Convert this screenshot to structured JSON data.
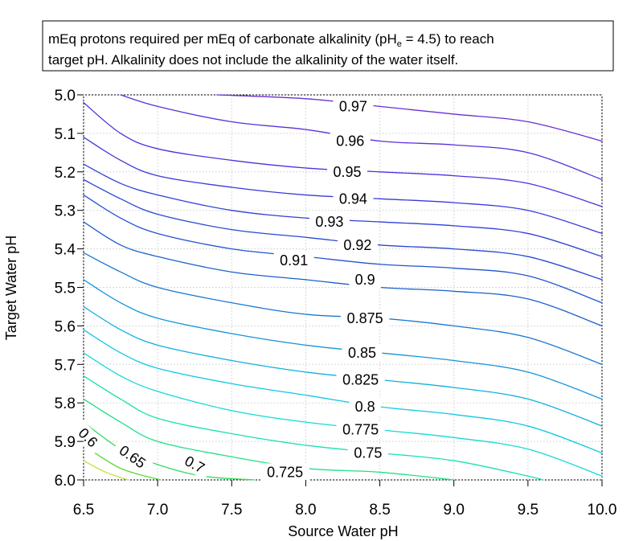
{
  "chart_data": {
    "type": "contour",
    "annotation_lines": [
      {
        "segments": [
          {
            "text": "mEq protons required per mEq of carbonate alkalinity (pH"
          },
          {
            "text": "e",
            "sub": true
          },
          {
            "text": " = 4.5) to reach"
          }
        ]
      },
      {
        "segments": [
          {
            "text": "target pH. Alkalinity does not include the alkalinity of the water itself."
          }
        ]
      }
    ],
    "xlabel": "Source Water pH",
    "ylabel": "Target Water pH",
    "xlim": [
      6.5,
      10.0
    ],
    "ylim": [
      5.0,
      6.0
    ],
    "y_inverted": true,
    "x_ticks": [
      "6.5",
      "7.0",
      "7.5",
      "8.0",
      "8.5",
      "9.0",
      "9.5",
      "10.0"
    ],
    "y_ticks": [
      "5.0",
      "5.1",
      "5.2",
      "5.3",
      "5.4",
      "5.5",
      "5.6",
      "5.7",
      "5.8",
      "5.9",
      "6.0"
    ],
    "grid": true,
    "contours": [
      {
        "level": 0.97,
        "label": "0.97",
        "color": "#6a2fd0",
        "points": [
          [
            7.4,
            5.0
          ],
          [
            8.0,
            5.01
          ],
          [
            8.5,
            5.03
          ],
          [
            9.0,
            5.05
          ],
          [
            9.5,
            5.07
          ],
          [
            10.0,
            5.12
          ]
        ]
      },
      {
        "level": 0.96,
        "label": "0.96",
        "color": "#5a30d8",
        "points": [
          [
            6.75,
            5.0
          ],
          [
            7.0,
            5.03
          ],
          [
            7.5,
            5.07
          ],
          [
            8.0,
            5.09
          ],
          [
            8.5,
            5.12
          ],
          [
            9.0,
            5.13
          ],
          [
            9.5,
            5.15
          ],
          [
            10.0,
            5.22
          ]
        ]
      },
      {
        "level": 0.95,
        "label": "0.95",
        "color": "#4a33de",
        "points": [
          [
            6.5,
            5.02
          ],
          [
            6.75,
            5.1
          ],
          [
            7.0,
            5.14
          ],
          [
            7.5,
            5.17
          ],
          [
            8.0,
            5.19
          ],
          [
            8.5,
            5.2
          ],
          [
            9.0,
            5.21
          ],
          [
            9.5,
            5.23
          ],
          [
            10.0,
            5.29
          ]
        ]
      },
      {
        "level": 0.94,
        "label": "0.94",
        "color": "#3c38dc",
        "points": [
          [
            6.5,
            5.11
          ],
          [
            6.75,
            5.17
          ],
          [
            7.0,
            5.21
          ],
          [
            7.5,
            5.24
          ],
          [
            8.0,
            5.26
          ],
          [
            8.5,
            5.27
          ],
          [
            9.0,
            5.28
          ],
          [
            9.5,
            5.3
          ],
          [
            10.0,
            5.36
          ]
        ]
      },
      {
        "level": 0.93,
        "label": "0.93",
        "color": "#3040d8",
        "points": [
          [
            6.5,
            5.18
          ],
          [
            6.75,
            5.23
          ],
          [
            7.0,
            5.26
          ],
          [
            7.5,
            5.3
          ],
          [
            8.0,
            5.32
          ],
          [
            8.5,
            5.33
          ],
          [
            9.0,
            5.34
          ],
          [
            9.5,
            5.36
          ],
          [
            10.0,
            5.42
          ]
        ]
      },
      {
        "level": 0.92,
        "label": "0.92",
        "color": "#2848d4",
        "points": [
          [
            6.5,
            5.22
          ],
          [
            6.75,
            5.27
          ],
          [
            7.0,
            5.31
          ],
          [
            7.5,
            5.35
          ],
          [
            8.0,
            5.37
          ],
          [
            8.5,
            5.39
          ],
          [
            9.0,
            5.4
          ],
          [
            9.5,
            5.42
          ],
          [
            10.0,
            5.48
          ]
        ]
      },
      {
        "level": 0.91,
        "label": "0.91",
        "color": "#2253d0",
        "points": [
          [
            6.5,
            5.26
          ],
          [
            6.75,
            5.32
          ],
          [
            7.0,
            5.36
          ],
          [
            7.5,
            5.4
          ],
          [
            8.0,
            5.42
          ],
          [
            8.5,
            5.44
          ],
          [
            9.0,
            5.45
          ],
          [
            9.5,
            5.47
          ],
          [
            10.0,
            5.54
          ]
        ]
      },
      {
        "level": 0.9,
        "label": "0.9",
        "color": "#1c60cc",
        "points": [
          [
            6.5,
            5.33
          ],
          [
            6.75,
            5.39
          ],
          [
            7.0,
            5.42
          ],
          [
            7.5,
            5.46
          ],
          [
            8.0,
            5.48
          ],
          [
            8.5,
            5.5
          ],
          [
            9.0,
            5.51
          ],
          [
            9.5,
            5.53
          ],
          [
            10.0,
            5.6
          ]
        ]
      },
      {
        "level": 0.875,
        "label": "0.875",
        "color": "#1878d0",
        "points": [
          [
            6.5,
            5.41
          ],
          [
            6.75,
            5.46
          ],
          [
            7.0,
            5.5
          ],
          [
            7.5,
            5.54
          ],
          [
            8.0,
            5.57
          ],
          [
            8.5,
            5.58
          ],
          [
            9.0,
            5.6
          ],
          [
            9.5,
            5.63
          ],
          [
            10.0,
            5.7
          ]
        ]
      },
      {
        "level": 0.85,
        "label": "0.85",
        "color": "#1494d8",
        "points": [
          [
            6.5,
            5.48
          ],
          [
            6.75,
            5.54
          ],
          [
            7.0,
            5.58
          ],
          [
            7.5,
            5.62
          ],
          [
            8.0,
            5.65
          ],
          [
            8.5,
            5.67
          ],
          [
            9.0,
            5.69
          ],
          [
            9.5,
            5.72
          ],
          [
            10.0,
            5.79
          ]
        ]
      },
      {
        "level": 0.825,
        "label": "0.825",
        "color": "#10b0e0",
        "points": [
          [
            6.5,
            5.55
          ],
          [
            6.75,
            5.61
          ],
          [
            7.0,
            5.65
          ],
          [
            7.5,
            5.69
          ],
          [
            8.0,
            5.72
          ],
          [
            8.5,
            5.74
          ],
          [
            9.0,
            5.76
          ],
          [
            9.5,
            5.79
          ],
          [
            10.0,
            5.86
          ]
        ]
      },
      {
        "level": 0.8,
        "label": "0.8",
        "color": "#10c8e4",
        "points": [
          [
            6.5,
            5.61
          ],
          [
            6.75,
            5.67
          ],
          [
            7.0,
            5.71
          ],
          [
            7.5,
            5.75
          ],
          [
            8.0,
            5.78
          ],
          [
            8.5,
            5.81
          ],
          [
            9.0,
            5.83
          ],
          [
            9.5,
            5.86
          ],
          [
            10.0,
            5.93
          ]
        ]
      },
      {
        "level": 0.775,
        "label": "0.775",
        "color": "#12dad8",
        "points": [
          [
            6.5,
            5.67
          ],
          [
            6.75,
            5.73
          ],
          [
            7.0,
            5.77
          ],
          [
            7.5,
            5.82
          ],
          [
            8.0,
            5.85
          ],
          [
            8.5,
            5.87
          ],
          [
            9.0,
            5.89
          ],
          [
            9.5,
            5.92
          ],
          [
            10.0,
            5.99
          ]
        ]
      },
      {
        "level": 0.75,
        "label": "0.75",
        "color": "#18e0b0",
        "points": [
          [
            6.5,
            5.73
          ],
          [
            6.75,
            5.79
          ],
          [
            7.0,
            5.84
          ],
          [
            7.5,
            5.88
          ],
          [
            8.0,
            5.91
          ],
          [
            8.5,
            5.93
          ],
          [
            9.0,
            5.95
          ],
          [
            9.5,
            5.99
          ],
          [
            9.6,
            6.0
          ]
        ]
      },
      {
        "level": 0.725,
        "label": "0.725",
        "color": "#20e088",
        "points": [
          [
            6.5,
            5.79
          ],
          [
            6.75,
            5.85
          ],
          [
            7.0,
            5.9
          ],
          [
            7.5,
            5.94
          ],
          [
            8.0,
            5.97
          ],
          [
            8.5,
            5.98
          ],
          [
            9.0,
            6.0
          ]
        ]
      },
      {
        "level": 0.7,
        "label": "0.7",
        "color": "#30dc60",
        "points": [
          [
            6.5,
            5.85
          ],
          [
            6.75,
            5.92
          ],
          [
            7.0,
            5.96
          ],
          [
            7.3,
            5.99
          ],
          [
            7.65,
            6.0
          ]
        ]
      },
      {
        "level": 0.65,
        "label": "0.65",
        "color": "#5cd838",
        "points": [
          [
            6.5,
            5.91
          ],
          [
            6.75,
            5.97
          ],
          [
            7.02,
            6.0
          ]
        ]
      },
      {
        "level": 0.6,
        "label": "0.6",
        "color": "#c8e03c",
        "points": [
          [
            6.5,
            5.95
          ],
          [
            6.65,
            5.98
          ],
          [
            6.8,
            6.0
          ]
        ]
      }
    ],
    "contour_labels": [
      {
        "label": "0.97",
        "x": 8.32,
        "y": 5.03
      },
      {
        "label": "0.96",
        "x": 8.3,
        "y": 5.12
      },
      {
        "label": "0.95",
        "x": 8.28,
        "y": 5.2
      },
      {
        "label": "0.94",
        "x": 8.32,
        "y": 5.27
      },
      {
        "label": "0.93",
        "x": 8.16,
        "y": 5.33
      },
      {
        "label": "0.92",
        "x": 8.35,
        "y": 5.39
      },
      {
        "label": "0.91",
        "x": 7.92,
        "y": 5.43
      },
      {
        "label": "0.9",
        "x": 8.4,
        "y": 5.48
      },
      {
        "label": "0.875",
        "x": 8.4,
        "y": 5.58
      },
      {
        "label": "0.85",
        "x": 8.38,
        "y": 5.67
      },
      {
        "label": "0.825",
        "x": 8.37,
        "y": 5.74
      },
      {
        "label": "0.8",
        "x": 8.4,
        "y": 5.81
      },
      {
        "label": "0.775",
        "x": 8.37,
        "y": 5.87
      },
      {
        "label": "0.75",
        "x": 8.42,
        "y": 5.93
      },
      {
        "label": "0.725",
        "x": 7.86,
        "y": 5.98
      },
      {
        "label": "0.7",
        "x": 7.25,
        "y": 5.96,
        "rotate": 28
      },
      {
        "label": "0.65",
        "x": 6.83,
        "y": 5.94,
        "rotate": 35
      },
      {
        "label": "0.6",
        "x": 6.53,
        "y": 5.89,
        "rotate": 45
      }
    ]
  }
}
